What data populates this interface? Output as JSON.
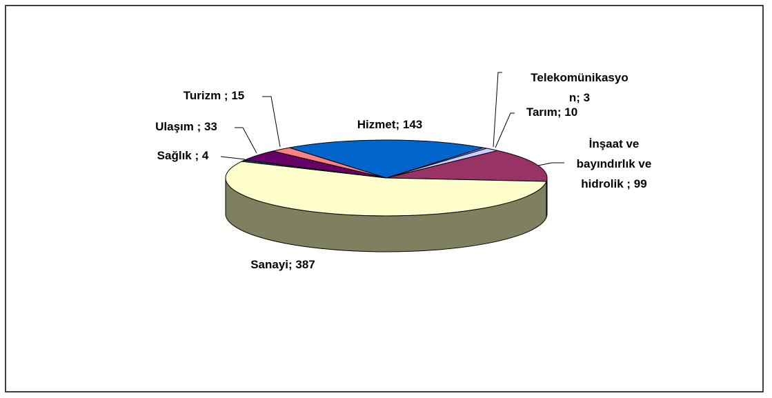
{
  "chart_data": {
    "type": "pie3d",
    "value_labels": [
      "Hizmet; 143",
      "Telekomünikasyon; 3",
      "Tarım; 10",
      "İnşaat ve bayındırlık ve hidrolik ; 99",
      "Sanayi; 387",
      "Sağlık ; 4",
      "Ulaşım ; 33",
      "Turizm ; 15"
    ],
    "values": [
      143,
      3,
      10,
      99,
      387,
      4,
      33,
      15
    ],
    "colors": [
      "#0066cc",
      "#9999ff",
      "#ccccff",
      "#993366",
      "#ffffcc",
      "#006666",
      "#660066",
      "#ff8080"
    ]
  }
}
